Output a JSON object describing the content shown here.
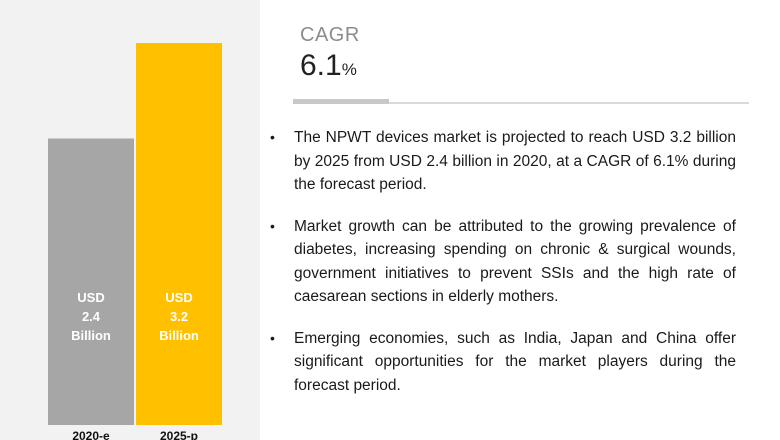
{
  "chart_data": {
    "type": "bar",
    "categories": [
      "2020-e",
      "2025-p"
    ],
    "values": [
      2.4,
      3.2
    ],
    "data_labels": [
      [
        "USD",
        "2.4",
        "Billion"
      ],
      [
        "USD",
        "3.2",
        "Billion"
      ]
    ],
    "colors": [
      "#a6a6a6",
      "#ffc000"
    ],
    "ylim": [
      0,
      3.2
    ],
    "grid": false,
    "title": "",
    "xlabel": "",
    "ylabel": ""
  },
  "cagr": {
    "title": "CAGR",
    "value": "6.1",
    "unit": "%"
  },
  "bullets": [
    "The NPWT devices market is projected to reach USD 3.2 billion by 2025 from USD 2.4 billion in 2020, at a CAGR of 6.1% during the forecast period.",
    "Market growth can be attributed to the growing prevalence  of diabetes, increasing spending on chronic & surgical wounds, government initiatives to prevent SSIs and the high rate of caesarean sections in elderly mothers.",
    "Emerging economies, such as India, Japan and China offer significant opportunities  for the market players during the forecast period."
  ],
  "bullet_symbol": "•"
}
